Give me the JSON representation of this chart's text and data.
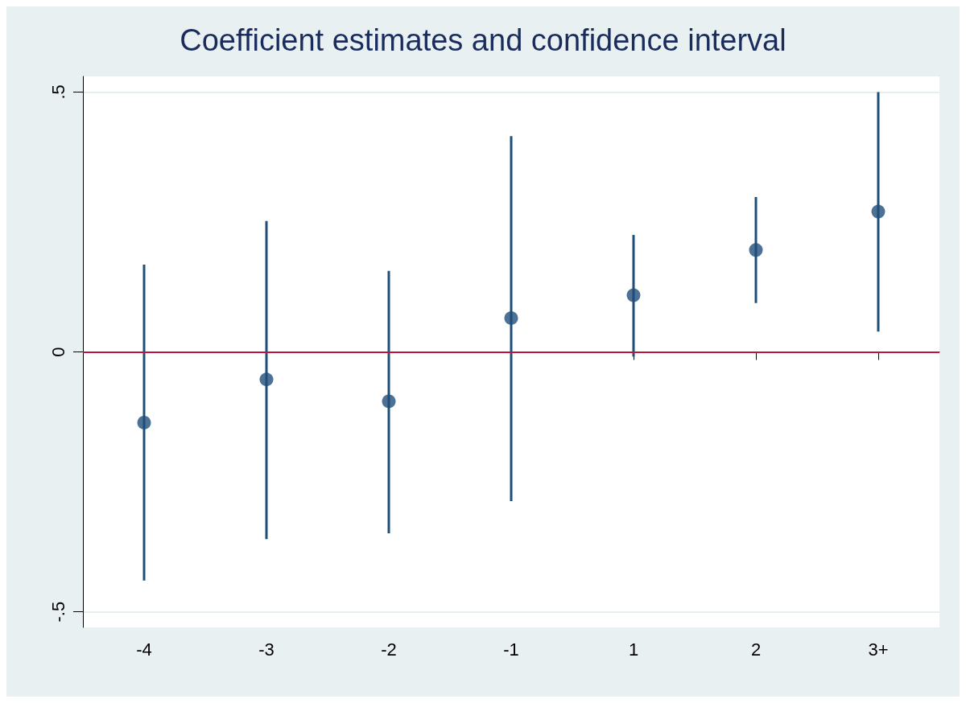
{
  "chart_data": {
    "type": "scatter",
    "title": "Coefficient estimates and confidence interval",
    "categories": [
      "-4",
      "-3",
      "-2",
      "-1",
      "1",
      "2",
      "3+"
    ],
    "values": [
      -0.136,
      -0.053,
      -0.095,
      0.065,
      0.109,
      0.196,
      0.27
    ],
    "errors": [
      [
        -0.44,
        0.168
      ],
      [
        -0.36,
        0.252
      ],
      [
        -0.349,
        0.156
      ],
      [
        -0.287,
        0.415
      ],
      [
        -0.009,
        0.225
      ],
      [
        0.094,
        0.298
      ],
      [
        0.039,
        0.5
      ]
    ],
    "color": "#1f4e79",
    "marker": "circle",
    "ylim": [
      -0.53,
      0.53
    ],
    "yticks": [
      {
        "value": -0.5,
        "label": "-.5"
      },
      {
        "value": 0,
        "label": "0"
      },
      {
        "value": 0.5,
        "label": ".5"
      }
    ],
    "grid": "y",
    "ref_lines": [
      {
        "axis": "y",
        "value": 0,
        "color": "#c0143c"
      }
    ]
  }
}
